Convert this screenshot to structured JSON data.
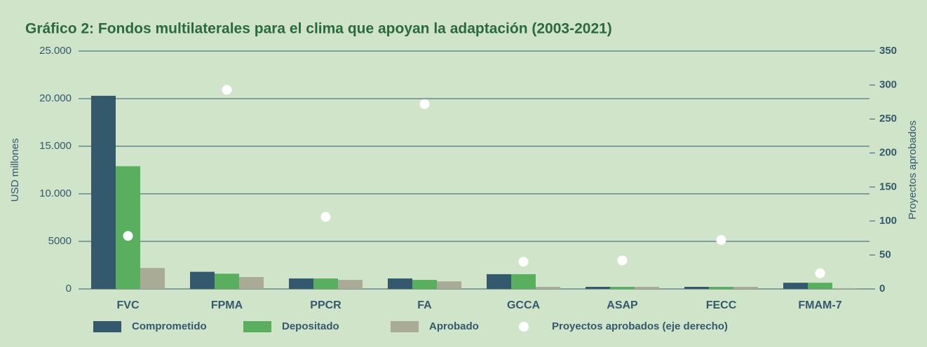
{
  "chart_data": {
    "type": "bar",
    "title": "Gráfico 2: Fondos multilaterales para el clima que apoyan la adaptación (2003-2021)",
    "ylabel": "USD millones",
    "y2label": "Proyectos aprobados",
    "categories": [
      "FVC",
      "FPMA",
      "PPCR",
      "FA",
      "GCCA",
      "ASAP",
      "FECC",
      "FMAM-7"
    ],
    "series": [
      {
        "name": "Comprometido",
        "color": "#34586c",
        "values": [
          20300,
          1800,
          1100,
          1100,
          1550,
          220,
          220,
          650
        ]
      },
      {
        "name": "Depositado",
        "color": "#5aaf5e",
        "values": [
          12900,
          1600,
          1100,
          950,
          1550,
          220,
          220,
          650
        ]
      },
      {
        "name": "Aprobado",
        "color": "#a9ab97",
        "values": [
          2200,
          1250,
          950,
          800,
          220,
          220,
          220,
          70
        ]
      },
      {
        "name": "Proyectos aprobados (eje derecho)",
        "color": "#ffffff",
        "axis": "y2",
        "values": [
          78,
          293,
          106,
          272,
          40,
          42,
          72,
          23
        ]
      }
    ],
    "ylim": [
      0,
      25000
    ],
    "yticks": [
      0,
      5000,
      {
        "value": 10000,
        "label": "10.000"
      },
      {
        "value": 15000,
        "label": "15.000"
      },
      {
        "value": 20000,
        "label": "20.000"
      },
      {
        "value": 25000,
        "label": "25.000"
      }
    ],
    "y2lim": [
      0,
      350
    ],
    "y2ticks": [
      0,
      50,
      100,
      150,
      200,
      250,
      300,
      350
    ],
    "grid": true
  }
}
